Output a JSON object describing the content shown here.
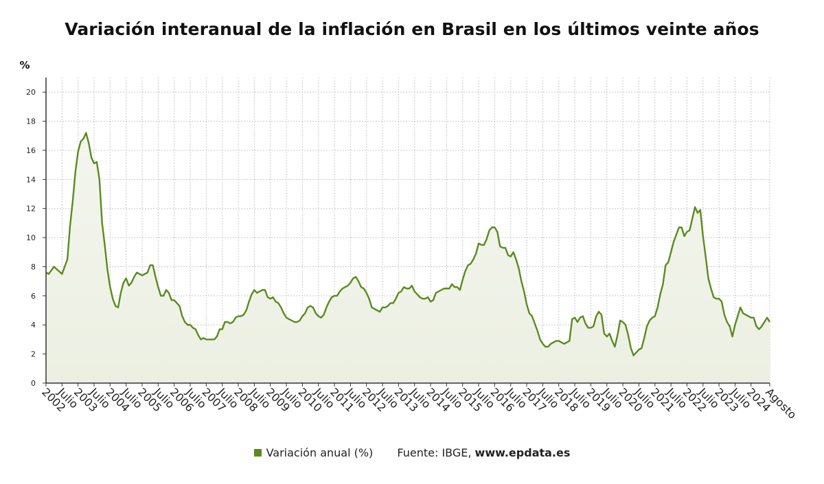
{
  "chart_data": {
    "type": "area",
    "title": "Variación interanual de la inflación en Brasil en los últimos veinte años",
    "ylabel": "%",
    "ylim": [
      0,
      21
    ],
    "yticks": [
      0,
      2,
      4,
      6,
      8,
      10,
      12,
      14,
      16,
      18,
      20
    ],
    "grid": true,
    "x_start": "2002-01",
    "x_end": "2024-08",
    "x_tick_labels": [
      "2002",
      "Julio",
      "2003",
      "Julio",
      "2004",
      "Julio",
      "2005",
      "Julio",
      "2006",
      "Julio",
      "2007",
      "Julio",
      "2008",
      "Julio",
      "2009",
      "Julio",
      "2010",
      "Julio",
      "2011",
      "Julio",
      "2012",
      "Julio",
      "2013",
      "Julio",
      "2014",
      "Julio",
      "2015",
      "Julio",
      "2016",
      "Julio",
      "2017",
      "Julio",
      "2018",
      "Julio",
      "2019",
      "Julio",
      "2020",
      "Julio",
      "2021",
      "Julio",
      "2022",
      "Julio",
      "2023",
      "Julio",
      "2024",
      "Agosto"
    ],
    "series": [
      {
        "name": "Variación anual (%)",
        "color": "#5a8a1e",
        "points": [
          [
            "2002-01",
            7.6
          ],
          [
            "2002-02",
            7.5
          ],
          [
            "2002-04",
            8.0
          ],
          [
            "2002-07",
            7.5
          ],
          [
            "2002-09",
            8.5
          ],
          [
            "2002-10",
            10.8
          ],
          [
            "2002-11",
            12.5
          ],
          [
            "2002-12",
            14.5
          ],
          [
            "2003-01",
            15.9
          ],
          [
            "2003-02",
            16.6
          ],
          [
            "2003-03",
            16.8
          ],
          [
            "2003-04",
            17.2
          ],
          [
            "2003-05",
            16.5
          ],
          [
            "2003-06",
            15.5
          ],
          [
            "2003-07",
            15.1
          ],
          [
            "2003-08",
            15.2
          ],
          [
            "2003-09",
            14.0
          ],
          [
            "2003-10",
            11.0
          ],
          [
            "2003-11",
            9.5
          ],
          [
            "2003-12",
            7.8
          ],
          [
            "2004-01",
            6.6
          ],
          [
            "2004-02",
            5.8
          ],
          [
            "2004-03",
            5.3
          ],
          [
            "2004-04",
            5.2
          ],
          [
            "2004-05",
            6.2
          ],
          [
            "2004-06",
            6.9
          ],
          [
            "2004-07",
            7.2
          ],
          [
            "2004-08",
            6.7
          ],
          [
            "2004-09",
            6.9
          ],
          [
            "2004-10",
            7.3
          ],
          [
            "2004-11",
            7.6
          ],
          [
            "2004-12",
            7.5
          ],
          [
            "2005-01",
            7.4
          ],
          [
            "2005-02",
            7.5
          ],
          [
            "2005-03",
            7.6
          ],
          [
            "2005-04",
            8.1
          ],
          [
            "2005-05",
            8.1
          ],
          [
            "2005-06",
            7.3
          ],
          [
            "2005-07",
            6.6
          ],
          [
            "2005-08",
            6.0
          ],
          [
            "2005-09",
            6.0
          ],
          [
            "2005-10",
            6.4
          ],
          [
            "2005-11",
            6.2
          ],
          [
            "2005-12",
            5.7
          ],
          [
            "2006-01",
            5.7
          ],
          [
            "2006-02",
            5.5
          ],
          [
            "2006-03",
            5.3
          ],
          [
            "2006-04",
            4.6
          ],
          [
            "2006-05",
            4.2
          ],
          [
            "2006-06",
            4.0
          ],
          [
            "2006-07",
            4.0
          ],
          [
            "2006-08",
            3.8
          ],
          [
            "2006-09",
            3.7
          ],
          [
            "2006-10",
            3.3
          ],
          [
            "2006-11",
            3.0
          ],
          [
            "2006-12",
            3.1
          ],
          [
            "2007-01",
            3.0
          ],
          [
            "2007-02",
            3.0
          ],
          [
            "2007-03",
            3.0
          ],
          [
            "2007-04",
            3.0
          ],
          [
            "2007-05",
            3.2
          ],
          [
            "2007-06",
            3.7
          ],
          [
            "2007-07",
            3.7
          ],
          [
            "2007-08",
            4.2
          ],
          [
            "2007-09",
            4.2
          ],
          [
            "2007-10",
            4.1
          ],
          [
            "2007-11",
            4.2
          ],
          [
            "2007-12",
            4.5
          ],
          [
            "2008-01",
            4.6
          ],
          [
            "2008-02",
            4.6
          ],
          [
            "2008-03",
            4.7
          ],
          [
            "2008-04",
            5.0
          ],
          [
            "2008-05",
            5.6
          ],
          [
            "2008-06",
            6.1
          ],
          [
            "2008-07",
            6.4
          ],
          [
            "2008-08",
            6.2
          ],
          [
            "2008-09",
            6.3
          ],
          [
            "2008-10",
            6.4
          ],
          [
            "2008-11",
            6.4
          ],
          [
            "2008-12",
            5.9
          ],
          [
            "2009-01",
            5.8
          ],
          [
            "2009-02",
            5.9
          ],
          [
            "2009-03",
            5.6
          ],
          [
            "2009-04",
            5.5
          ],
          [
            "2009-05",
            5.2
          ],
          [
            "2009-06",
            4.8
          ],
          [
            "2009-07",
            4.5
          ],
          [
            "2009-08",
            4.4
          ],
          [
            "2009-09",
            4.3
          ],
          [
            "2009-10",
            4.2
          ],
          [
            "2009-11",
            4.2
          ],
          [
            "2009-12",
            4.3
          ],
          [
            "2010-01",
            4.6
          ],
          [
            "2010-02",
            4.8
          ],
          [
            "2010-03",
            5.2
          ],
          [
            "2010-04",
            5.3
          ],
          [
            "2010-05",
            5.2
          ],
          [
            "2010-06",
            4.8
          ],
          [
            "2010-07",
            4.6
          ],
          [
            "2010-08",
            4.5
          ],
          [
            "2010-09",
            4.7
          ],
          [
            "2010-10",
            5.2
          ],
          [
            "2010-11",
            5.6
          ],
          [
            "2010-12",
            5.9
          ],
          [
            "2011-01",
            6.0
          ],
          [
            "2011-02",
            6.0
          ],
          [
            "2011-03",
            6.3
          ],
          [
            "2011-04",
            6.5
          ],
          [
            "2011-05",
            6.6
          ],
          [
            "2011-06",
            6.7
          ],
          [
            "2011-07",
            6.9
          ],
          [
            "2011-08",
            7.2
          ],
          [
            "2011-09",
            7.3
          ],
          [
            "2011-10",
            7.0
          ],
          [
            "2011-11",
            6.6
          ],
          [
            "2011-12",
            6.5
          ],
          [
            "2012-01",
            6.2
          ],
          [
            "2012-02",
            5.8
          ],
          [
            "2012-03",
            5.2
          ],
          [
            "2012-04",
            5.1
          ],
          [
            "2012-05",
            5.0
          ],
          [
            "2012-06",
            4.9
          ],
          [
            "2012-07",
            5.2
          ],
          [
            "2012-08",
            5.2
          ],
          [
            "2012-09",
            5.3
          ],
          [
            "2012-10",
            5.5
          ],
          [
            "2012-11",
            5.5
          ],
          [
            "2012-12",
            5.8
          ],
          [
            "2013-01",
            6.2
          ],
          [
            "2013-02",
            6.3
          ],
          [
            "2013-03",
            6.6
          ],
          [
            "2013-04",
            6.5
          ],
          [
            "2013-05",
            6.5
          ],
          [
            "2013-06",
            6.7
          ],
          [
            "2013-07",
            6.3
          ],
          [
            "2013-08",
            6.1
          ],
          [
            "2013-09",
            5.9
          ],
          [
            "2013-10",
            5.8
          ],
          [
            "2013-11",
            5.8
          ],
          [
            "2013-12",
            5.9
          ],
          [
            "2014-01",
            5.6
          ],
          [
            "2014-02",
            5.7
          ],
          [
            "2014-03",
            6.2
          ],
          [
            "2014-04",
            6.3
          ],
          [
            "2014-05",
            6.4
          ],
          [
            "2014-06",
            6.5
          ],
          [
            "2014-07",
            6.5
          ],
          [
            "2014-08",
            6.5
          ],
          [
            "2014-09",
            6.8
          ],
          [
            "2014-10",
            6.6
          ],
          [
            "2014-11",
            6.6
          ],
          [
            "2014-12",
            6.4
          ],
          [
            "2015-01",
            7.1
          ],
          [
            "2015-02",
            7.7
          ],
          [
            "2015-03",
            8.1
          ],
          [
            "2015-04",
            8.2
          ],
          [
            "2015-05",
            8.5
          ],
          [
            "2015-06",
            8.9
          ],
          [
            "2015-07",
            9.6
          ],
          [
            "2015-08",
            9.5
          ],
          [
            "2015-09",
            9.5
          ],
          [
            "2015-10",
            9.9
          ],
          [
            "2015-11",
            10.5
          ],
          [
            "2015-12",
            10.7
          ],
          [
            "2016-01",
            10.7
          ],
          [
            "2016-02",
            10.4
          ],
          [
            "2016-03",
            9.4
          ],
          [
            "2016-04",
            9.3
          ],
          [
            "2016-05",
            9.3
          ],
          [
            "2016-06",
            8.8
          ],
          [
            "2016-07",
            8.7
          ],
          [
            "2016-08",
            9.0
          ],
          [
            "2016-09",
            8.5
          ],
          [
            "2016-10",
            7.9
          ],
          [
            "2016-11",
            7.0
          ],
          [
            "2016-12",
            6.3
          ],
          [
            "2017-01",
            5.4
          ],
          [
            "2017-02",
            4.8
          ],
          [
            "2017-03",
            4.6
          ],
          [
            "2017-04",
            4.1
          ],
          [
            "2017-05",
            3.6
          ],
          [
            "2017-06",
            3.0
          ],
          [
            "2017-07",
            2.7
          ],
          [
            "2017-08",
            2.5
          ],
          [
            "2017-09",
            2.5
          ],
          [
            "2017-10",
            2.7
          ],
          [
            "2017-11",
            2.8
          ],
          [
            "2017-12",
            2.9
          ],
          [
            "2018-01",
            2.9
          ],
          [
            "2018-02",
            2.8
          ],
          [
            "2018-03",
            2.7
          ],
          [
            "2018-04",
            2.8
          ],
          [
            "2018-05",
            2.9
          ],
          [
            "2018-06",
            4.4
          ],
          [
            "2018-07",
            4.5
          ],
          [
            "2018-08",
            4.2
          ],
          [
            "2018-09",
            4.5
          ],
          [
            "2018-10",
            4.6
          ],
          [
            "2018-11",
            4.1
          ],
          [
            "2018-12",
            3.8
          ],
          [
            "2019-01",
            3.8
          ],
          [
            "2019-02",
            3.9
          ],
          [
            "2019-03",
            4.6
          ],
          [
            "2019-04",
            4.9
          ],
          [
            "2019-05",
            4.7
          ],
          [
            "2019-06",
            3.4
          ],
          [
            "2019-07",
            3.2
          ],
          [
            "2019-08",
            3.4
          ],
          [
            "2019-09",
            2.9
          ],
          [
            "2019-10",
            2.5
          ],
          [
            "2019-11",
            3.3
          ],
          [
            "2019-12",
            4.3
          ],
          [
            "2020-01",
            4.2
          ],
          [
            "2020-02",
            4.0
          ],
          [
            "2020-03",
            3.3
          ],
          [
            "2020-04",
            2.4
          ],
          [
            "2020-05",
            1.9
          ],
          [
            "2020-06",
            2.1
          ],
          [
            "2020-07",
            2.3
          ],
          [
            "2020-08",
            2.4
          ],
          [
            "2020-09",
            3.1
          ],
          [
            "2020-10",
            3.9
          ],
          [
            "2020-11",
            4.3
          ],
          [
            "2020-12",
            4.5
          ],
          [
            "2021-01",
            4.6
          ],
          [
            "2021-02",
            5.2
          ],
          [
            "2021-03",
            6.1
          ],
          [
            "2021-04",
            6.8
          ],
          [
            "2021-05",
            8.1
          ],
          [
            "2021-06",
            8.3
          ],
          [
            "2021-07",
            9.0
          ],
          [
            "2021-08",
            9.7
          ],
          [
            "2021-09",
            10.2
          ],
          [
            "2021-10",
            10.7
          ],
          [
            "2021-11",
            10.7
          ],
          [
            "2021-12",
            10.1
          ],
          [
            "2022-01",
            10.4
          ],
          [
            "2022-02",
            10.5
          ],
          [
            "2022-03",
            11.3
          ],
          [
            "2022-04",
            12.1
          ],
          [
            "2022-05",
            11.7
          ],
          [
            "2022-06",
            11.9
          ],
          [
            "2022-07",
            10.1
          ],
          [
            "2022-08",
            8.7
          ],
          [
            "2022-09",
            7.2
          ],
          [
            "2022-10",
            6.5
          ],
          [
            "2022-11",
            5.9
          ],
          [
            "2022-12",
            5.8
          ],
          [
            "2023-01",
            5.8
          ],
          [
            "2023-02",
            5.6
          ],
          [
            "2023-03",
            4.7
          ],
          [
            "2023-04",
            4.2
          ],
          [
            "2023-05",
            3.9
          ],
          [
            "2023-06",
            3.2
          ],
          [
            "2023-07",
            4.0
          ],
          [
            "2023-08",
            4.6
          ],
          [
            "2023-09",
            5.2
          ],
          [
            "2023-10",
            4.8
          ],
          [
            "2023-11",
            4.7
          ],
          [
            "2023-12",
            4.6
          ],
          [
            "2024-01",
            4.5
          ],
          [
            "2024-02",
            4.5
          ],
          [
            "2024-03",
            3.9
          ],
          [
            "2024-04",
            3.7
          ],
          [
            "2024-05",
            3.9
          ],
          [
            "2024-06",
            4.2
          ],
          [
            "2024-07",
            4.5
          ],
          [
            "2024-08",
            4.2
          ]
        ]
      }
    ]
  },
  "legend": {
    "series_label": "Variación anual (%)",
    "source_prefix": "Fuente: IBGE, ",
    "source_site": "www.epdata.es"
  }
}
